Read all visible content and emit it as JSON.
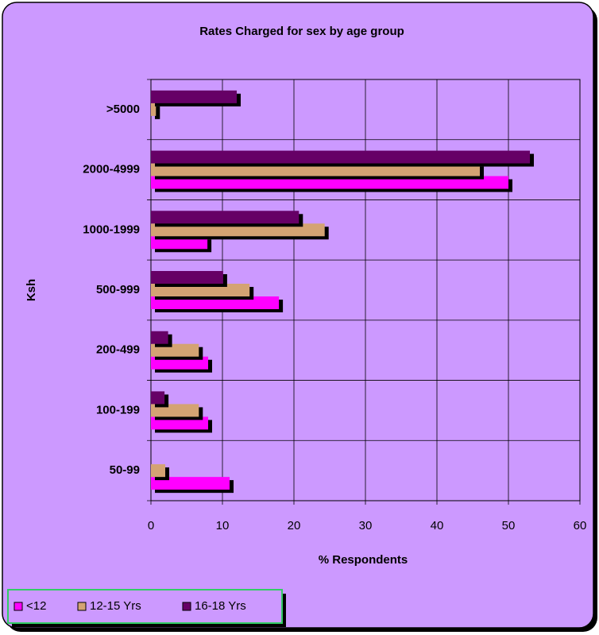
{
  "chart_data": {
    "type": "bar",
    "orientation": "horizontal",
    "title": "Rates Charged for sex by age group",
    "xlabel": "% Respondents",
    "ylabel": "Ksh",
    "categories": [
      "50-99",
      "100-199",
      "200-499",
      "500-999",
      "1000-1999",
      "2000-4999",
      ">5000"
    ],
    "series": [
      {
        "name": "<12",
        "color": "#ff00ff",
        "values": [
          11,
          8,
          8,
          17.9,
          7.9,
          50,
          0
        ]
      },
      {
        "name": "12-15 Yrs",
        "color": "#d4a373",
        "values": [
          2,
          6.7,
          6.7,
          13.8,
          24.3,
          46,
          0.7
        ]
      },
      {
        "name": "16-18 Yrs",
        "color": "#660066",
        "values": [
          0,
          1.9,
          2.4,
          10.1,
          20.7,
          53,
          12
        ]
      }
    ],
    "xlim": [
      0,
      60
    ],
    "xticks": [
      0,
      10,
      20,
      30,
      40,
      50,
      60
    ],
    "grid": true,
    "legend": "bottom-left"
  }
}
